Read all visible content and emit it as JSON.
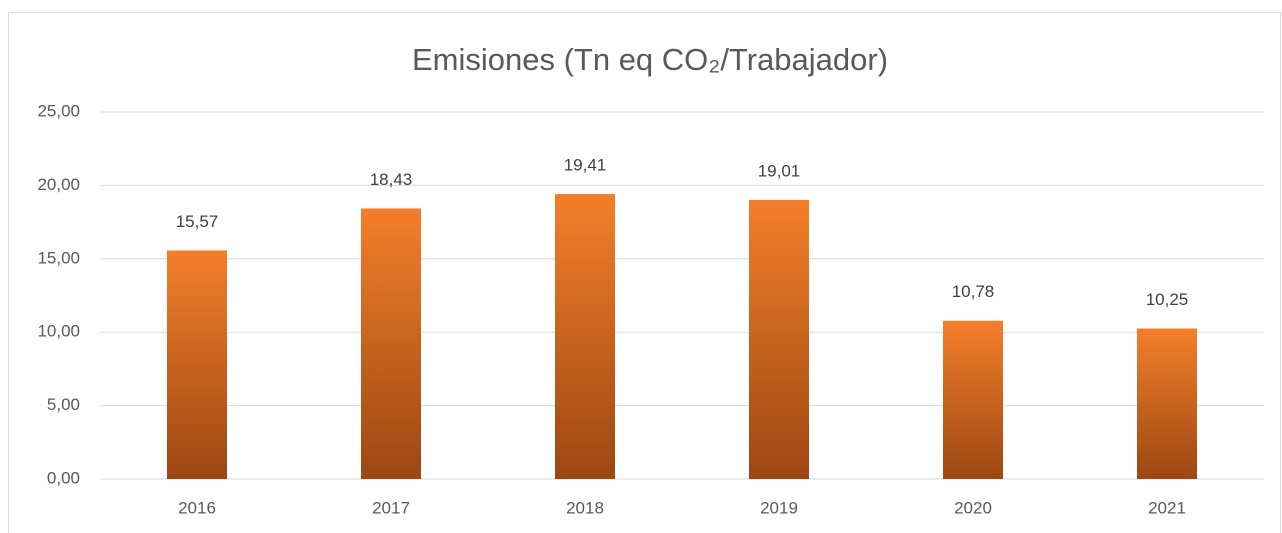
{
  "chart_data": {
    "type": "bar",
    "title": "Emisiones  (Tn eq CO₂/Trabajador)",
    "categories": [
      "2016",
      "2017",
      "2018",
      "2019",
      "2020",
      "2021"
    ],
    "values": [
      15.57,
      18.43,
      19.41,
      19.01,
      10.78,
      10.25
    ],
    "value_labels": [
      "15,57",
      "18,43",
      "19,41",
      "19,01",
      "10,78",
      "10,25"
    ],
    "color": "#f47f2a",
    "ylim": [
      0,
      25
    ],
    "yticks": [
      {
        "value": 0,
        "label": "0,00"
      },
      {
        "value": 5,
        "label": "5,00"
      },
      {
        "value": 10,
        "label": "10,00"
      },
      {
        "value": 15,
        "label": "15,00"
      },
      {
        "value": 20,
        "label": "20,00"
      },
      {
        "value": 25,
        "label": "25,00"
      }
    ],
    "grid": true
  }
}
